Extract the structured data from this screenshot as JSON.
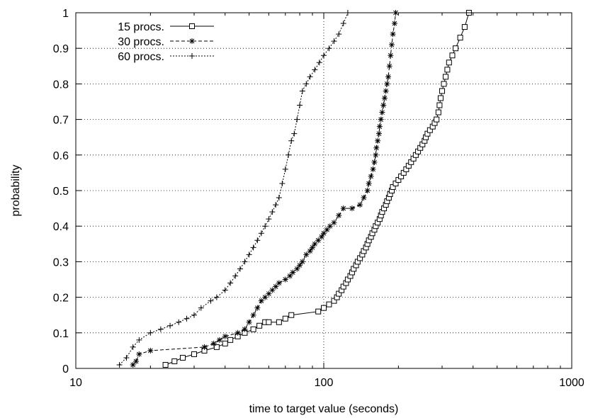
{
  "chart_data": {
    "type": "line",
    "xlabel": "time to target value (seconds)",
    "ylabel": "probability",
    "xscale": "log",
    "xlim": [
      10,
      1000
    ],
    "ylim": [
      0,
      1
    ],
    "xticks": [
      "10",
      "100",
      "1000"
    ],
    "yticks": [
      "0",
      "0.1",
      "0.2",
      "0.3",
      "0.4",
      "0.5",
      "0.6",
      "0.7",
      "0.8",
      "0.9",
      "1"
    ],
    "grid": true,
    "legend_position": "top-left",
    "series": [
      {
        "name": "15 procs.",
        "marker": "square",
        "line": "solid",
        "color": "#000000",
        "x": [
          23,
          25,
          27,
          30,
          33,
          37,
          40,
          42,
          45,
          48,
          52,
          55,
          58,
          60,
          66,
          70,
          74,
          95,
          100,
          105,
          110,
          113,
          115,
          118,
          120,
          123,
          125,
          128,
          130,
          132,
          135,
          137,
          140,
          143,
          145,
          148,
          150,
          152,
          155,
          157,
          160,
          162,
          165,
          168,
          170,
          172,
          175,
          178,
          180,
          183,
          185,
          188,
          190,
          195,
          200,
          205,
          210,
          215,
          220,
          225,
          230,
          235,
          240,
          245,
          250,
          255,
          258,
          262,
          268,
          275,
          280,
          285,
          290,
          293,
          296,
          300,
          305,
          310,
          315,
          320,
          330,
          340,
          355,
          370,
          385
        ],
        "y": [
          0.01,
          0.02,
          0.03,
          0.04,
          0.05,
          0.06,
          0.07,
          0.08,
          0.09,
          0.1,
          0.11,
          0.12,
          0.13,
          0.13,
          0.13,
          0.14,
          0.15,
          0.16,
          0.17,
          0.18,
          0.19,
          0.2,
          0.21,
          0.22,
          0.23,
          0.24,
          0.25,
          0.26,
          0.27,
          0.28,
          0.29,
          0.3,
          0.31,
          0.32,
          0.33,
          0.34,
          0.35,
          0.36,
          0.37,
          0.38,
          0.39,
          0.4,
          0.41,
          0.42,
          0.43,
          0.44,
          0.45,
          0.46,
          0.47,
          0.48,
          0.49,
          0.5,
          0.51,
          0.52,
          0.53,
          0.54,
          0.55,
          0.56,
          0.57,
          0.58,
          0.59,
          0.6,
          0.61,
          0.62,
          0.63,
          0.64,
          0.65,
          0.66,
          0.67,
          0.68,
          0.69,
          0.7,
          0.72,
          0.74,
          0.76,
          0.78,
          0.8,
          0.82,
          0.84,
          0.86,
          0.88,
          0.9,
          0.93,
          0.96,
          1.0
        ]
      },
      {
        "name": "30 procs.",
        "marker": "asterisk",
        "line": "dashed",
        "color": "#000000",
        "x": [
          17,
          17.5,
          18,
          20,
          33,
          36,
          38,
          40,
          45,
          48,
          50,
          52,
          54,
          56,
          58,
          60,
          62,
          64,
          66,
          70,
          73,
          75,
          78,
          80,
          82,
          85,
          88,
          90,
          92,
          95,
          98,
          100,
          103,
          106,
          110,
          115,
          120,
          130,
          140,
          145,
          150,
          152,
          155,
          158,
          160,
          162,
          163,
          165,
          167,
          168,
          170,
          172,
          174,
          176,
          178,
          180,
          182,
          184,
          186,
          188,
          190,
          193,
          195
        ],
        "y": [
          0.01,
          0.02,
          0.04,
          0.05,
          0.06,
          0.07,
          0.08,
          0.09,
          0.1,
          0.11,
          0.13,
          0.15,
          0.17,
          0.19,
          0.2,
          0.21,
          0.22,
          0.23,
          0.24,
          0.25,
          0.26,
          0.27,
          0.28,
          0.29,
          0.3,
          0.32,
          0.33,
          0.34,
          0.35,
          0.36,
          0.37,
          0.38,
          0.39,
          0.4,
          0.41,
          0.43,
          0.45,
          0.45,
          0.46,
          0.48,
          0.5,
          0.52,
          0.54,
          0.56,
          0.58,
          0.6,
          0.62,
          0.64,
          0.66,
          0.68,
          0.7,
          0.72,
          0.74,
          0.76,
          0.78,
          0.8,
          0.82,
          0.85,
          0.88,
          0.91,
          0.94,
          0.97,
          1.0
        ]
      },
      {
        "name": "60 procs.",
        "marker": "plus",
        "line": "dotted",
        "color": "#000000",
        "x": [
          15,
          16,
          17,
          18,
          20,
          22,
          24,
          26,
          28,
          30,
          32,
          35,
          37,
          40,
          42,
          44,
          46,
          48,
          50,
          52,
          54,
          56,
          58,
          60,
          62,
          64,
          66,
          68,
          70,
          72,
          74,
          76,
          78,
          80,
          82,
          85,
          88,
          92,
          96,
          100,
          105,
          110,
          115,
          120,
          125
        ],
        "y": [
          0.01,
          0.03,
          0.06,
          0.08,
          0.1,
          0.11,
          0.12,
          0.13,
          0.14,
          0.15,
          0.17,
          0.19,
          0.2,
          0.22,
          0.24,
          0.26,
          0.28,
          0.3,
          0.32,
          0.34,
          0.36,
          0.38,
          0.4,
          0.42,
          0.44,
          0.46,
          0.48,
          0.52,
          0.56,
          0.6,
          0.64,
          0.66,
          0.7,
          0.74,
          0.78,
          0.8,
          0.82,
          0.84,
          0.86,
          0.88,
          0.9,
          0.92,
          0.94,
          0.97,
          1.0
        ]
      }
    ]
  }
}
